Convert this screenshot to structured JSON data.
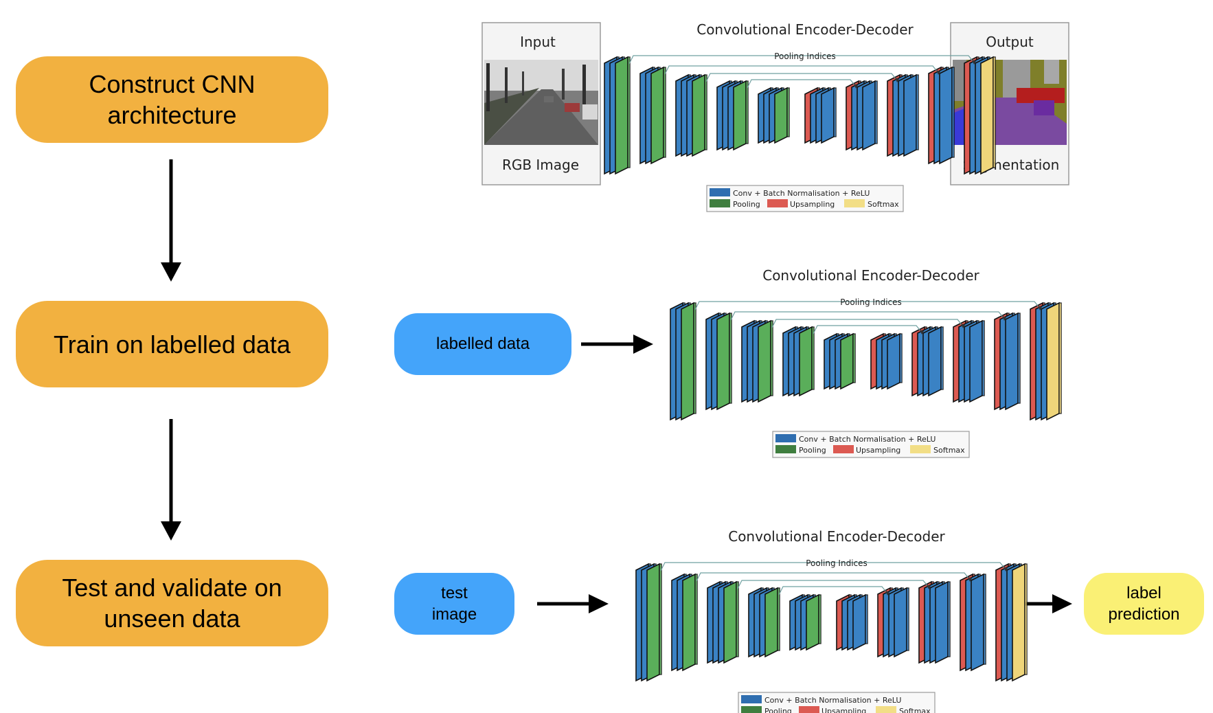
{
  "steps": [
    {
      "line1": "Construct CNN",
      "line2": "architecture"
    },
    {
      "line1": "Train on labelled data",
      "line2": ""
    },
    {
      "line1": "Test and validate on",
      "line2": "unseen data"
    }
  ],
  "inputs": {
    "labelled": "labelled data",
    "test_line1": "test",
    "test_line2": "image",
    "prediction_line1": "label",
    "prediction_line2": "prediction"
  },
  "network": {
    "title": "Convolutional Encoder-Decoder",
    "pooling_indices": "Pooling Indices",
    "input_label": "Input",
    "input_caption": "RGB Image",
    "output_label": "Output",
    "output_caption": "Segmentation",
    "legend": {
      "conv": "Conv + Batch Normalisation + ReLU",
      "pooling": "Pooling",
      "upsampling": "Upsampling",
      "softmax": "Softmax"
    }
  },
  "colors": {
    "step_box": "#F2B140",
    "input_pill": "#44A4FA",
    "output_pill": "#FAF075",
    "conv": "#3A82C4",
    "pooling": "#5AAE5A",
    "upsampling": "#DC5A52",
    "softmax": "#EFD57A",
    "legend_conv": "#2F6EB0",
    "legend_pooling": "#3F7E3F",
    "legend_upsampling": "#DC5A52",
    "legend_softmax": "#F2DE86"
  }
}
